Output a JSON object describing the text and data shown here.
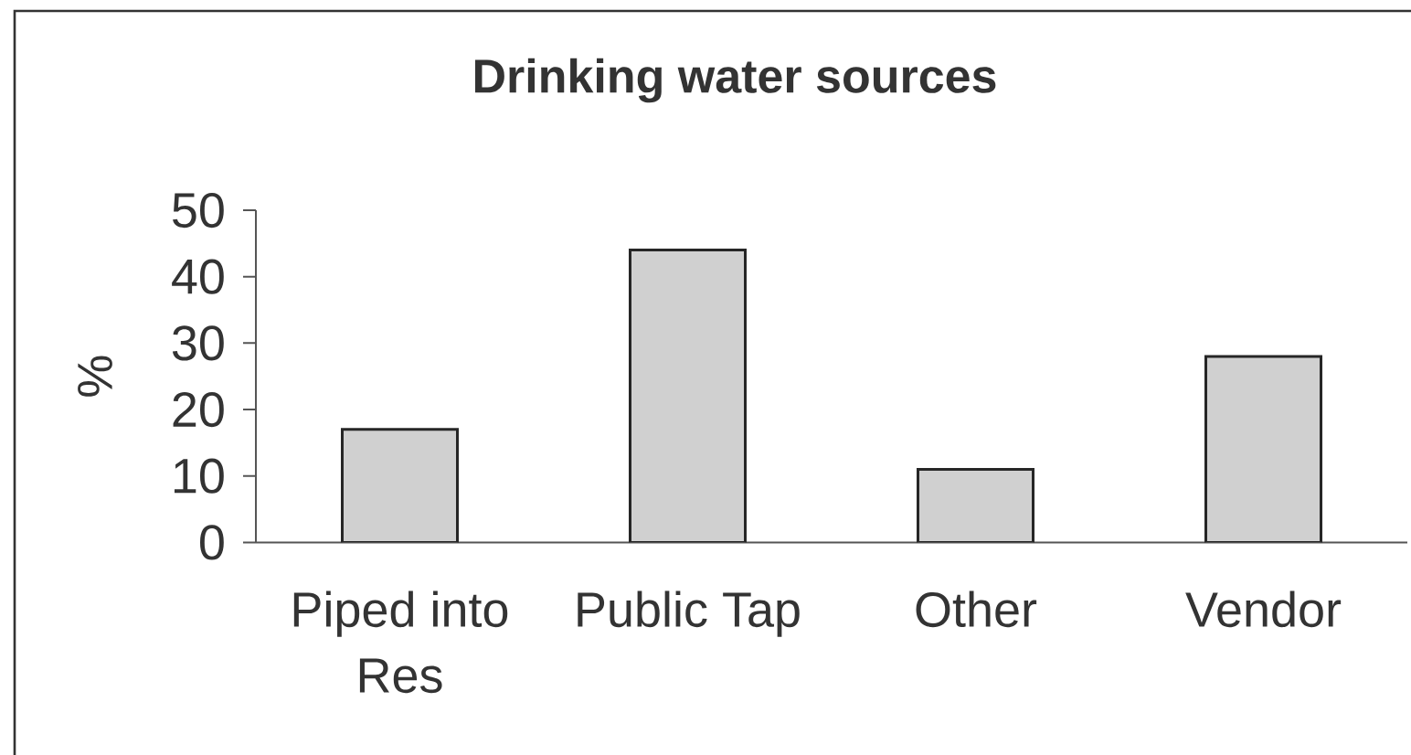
{
  "chart_data": {
    "type": "bar",
    "title": "Drinking water sources",
    "ylabel": "%",
    "categories": [
      "Piped into Res",
      "Public Tap",
      "Other",
      "Vendor"
    ],
    "values": [
      17,
      44,
      11,
      28
    ],
    "color": "#d0d0d0",
    "ylim": [
      0,
      50
    ],
    "yticks": [
      0,
      10,
      20,
      30,
      40,
      50
    ]
  }
}
